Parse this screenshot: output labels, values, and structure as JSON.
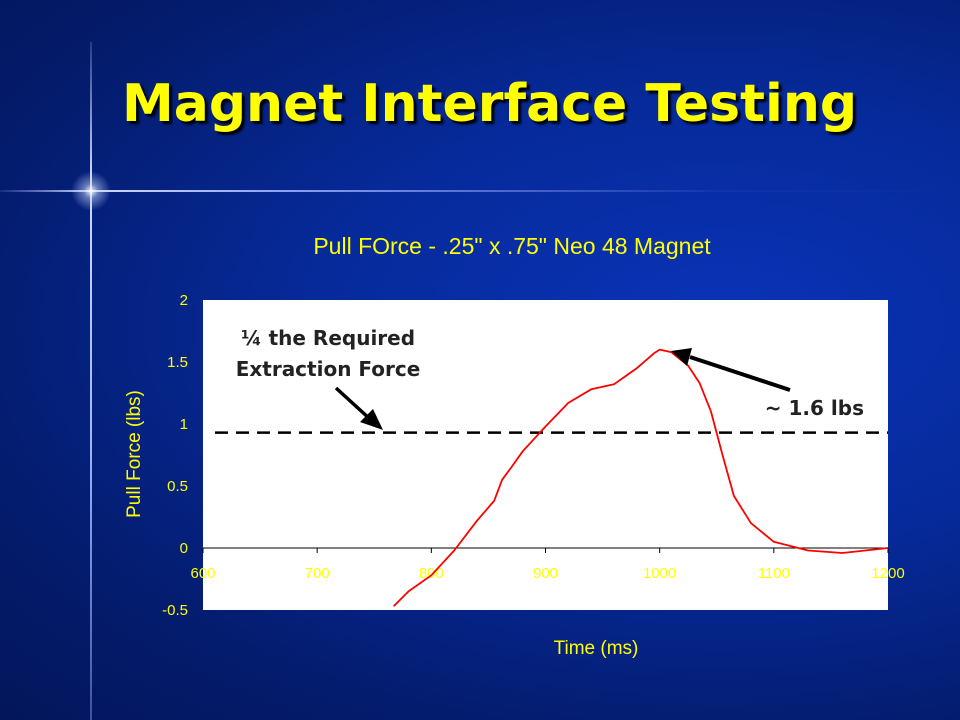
{
  "slide": {
    "title": "Magnet Interface Testing",
    "title_color": "#ffff00",
    "background_color": "#062a9a"
  },
  "chart_data": {
    "type": "line",
    "title": "Pull FOrce - .25\" x .75\" Neo 48 Magnet",
    "xlabel": "Time (ms)",
    "ylabel": "Pull Force (lbs)",
    "xlim": [
      600,
      1200
    ],
    "ylim": [
      -0.5,
      2
    ],
    "x_ticks": [
      "600",
      "700",
      "800",
      "900",
      "1000",
      "1100",
      "1200"
    ],
    "y_ticks": [
      "2",
      "1.5",
      "1",
      "0.5",
      "0",
      "-0.5"
    ],
    "grid": false,
    "line_color": "#ff0000",
    "plot_background": "#ffffff",
    "series": [
      {
        "x": [
          767,
          780,
          800,
          820,
          840,
          855,
          862,
          870,
          880,
          900,
          920,
          940,
          960,
          980,
          995,
          1000,
          1010,
          1025,
          1035,
          1045,
          1055,
          1065,
          1080,
          1100,
          1130,
          1160,
          1200
        ],
        "y": [
          -0.47,
          -0.35,
          -0.22,
          -0.02,
          0.22,
          0.38,
          0.55,
          0.65,
          0.78,
          0.98,
          1.17,
          1.28,
          1.32,
          1.45,
          1.57,
          1.6,
          1.58,
          1.47,
          1.33,
          1.1,
          0.75,
          0.42,
          0.2,
          0.05,
          -0.02,
          -0.04,
          0.0
        ]
      }
    ],
    "reference_line": {
      "y": 0.93,
      "style": "dashed",
      "color": "#000000"
    },
    "annotations": {
      "required_line1": "¼ the Required",
      "required_line2": "Extraction Force",
      "peak": "~ 1.6 lbs"
    }
  }
}
